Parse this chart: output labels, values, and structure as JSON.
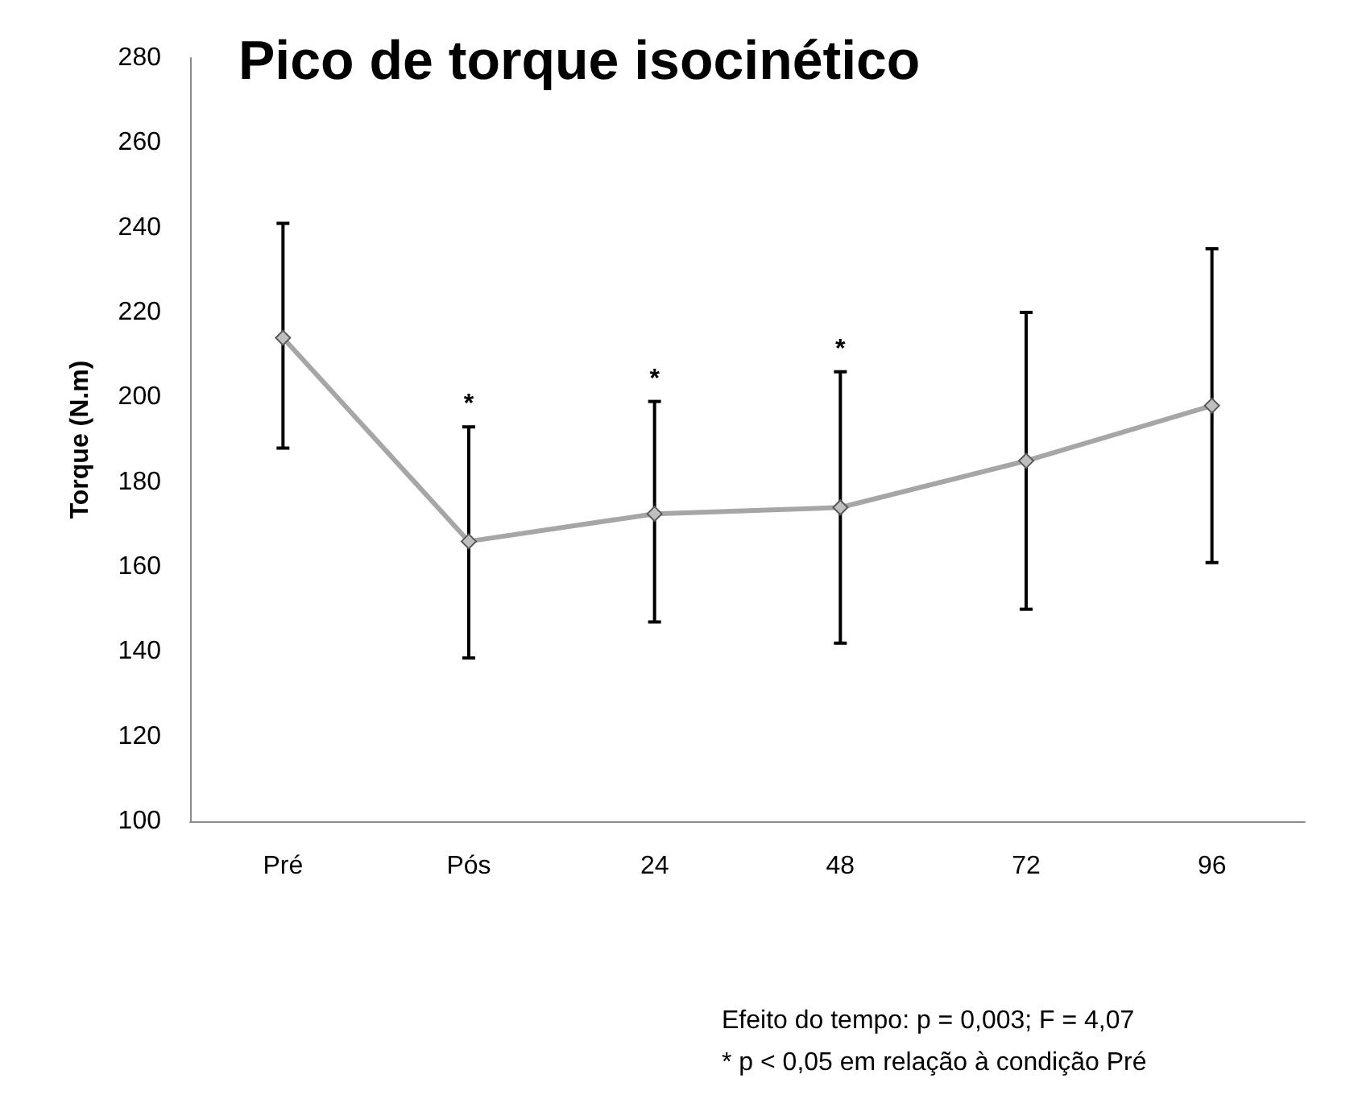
{
  "chart_data": {
    "type": "line",
    "title": "Pico de torque isocinético",
    "ylabel": "Torque (N.m)",
    "categories": [
      "Pré",
      "Pós",
      "24",
      "48",
      "72",
      "96"
    ],
    "series": [
      {
        "color": "#a6a6a6",
        "values": [
          214,
          166,
          172.5,
          174,
          185,
          198
        ],
        "errors": [
          [
            188,
            241
          ],
          [
            138.5,
            193
          ],
          [
            147,
            199
          ],
          [
            142,
            206
          ],
          [
            150,
            220
          ],
          [
            161,
            235
          ]
        ]
      }
    ],
    "ylim": [
      100,
      280
    ],
    "yticks": [
      100,
      120,
      140,
      160,
      180,
      200,
      220,
      240,
      260,
      280
    ],
    "grid": false,
    "marker": "diamond",
    "line_style": "solid",
    "annotations": [
      {
        "text": "*",
        "x": "Pós",
        "y": 193
      },
      {
        "text": "*",
        "x": "24",
        "y": 199
      },
      {
        "text": "*",
        "x": "48",
        "y": 206
      },
      "Efeito do tempo: p = 0,003; F = 4,07",
      "* p < 0,05 em relação à condição Pré"
    ]
  }
}
